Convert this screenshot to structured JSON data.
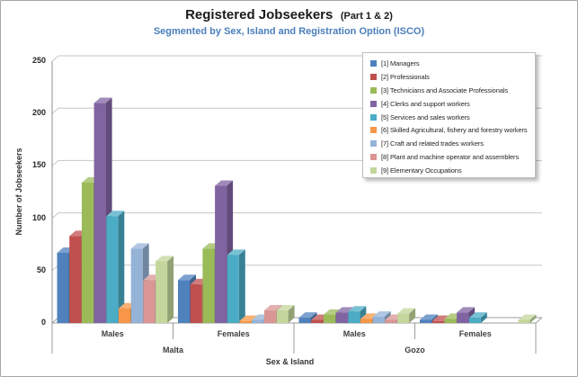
{
  "window": {
    "background": "#FFFFFF",
    "border_color": "#A6A6A6"
  },
  "chart_data": {
    "type": "bar",
    "style": "3d-column",
    "title": "Registered Jobseekers",
    "title_suffix": "(Part 1 & 2)",
    "subtitle": "Segmented by Sex, Island and Registration Option (ISCO)",
    "subtitle_color": "#4A7EBB",
    "ylabel": "Number of Jobseekers",
    "xlabel": "Sex & Island",
    "ylim": [
      0,
      250
    ],
    "yticks": [
      0,
      50,
      100,
      150,
      200,
      250
    ],
    "grid": true,
    "legend_position": "top-right",
    "islands": [
      "Malta",
      "Gozo"
    ],
    "categories": [
      {
        "island": "Malta",
        "sex": "Males"
      },
      {
        "island": "Malta",
        "sex": "Females"
      },
      {
        "island": "Gozo",
        "sex": "Males"
      },
      {
        "island": "Gozo",
        "sex": "Females"
      }
    ],
    "series": [
      {
        "name": "[1] Managers",
        "color": "#4F81BD",
        "values": [
          67,
          41,
          5,
          3
        ]
      },
      {
        "name": "[2] Professionals",
        "color": "#C0504D",
        "values": [
          83,
          37,
          3,
          2
        ]
      },
      {
        "name": "[3] Technicians and Associate Professionals",
        "color": "#9BBB59",
        "values": [
          134,
          71,
          8,
          4
        ]
      },
      {
        "name": "[4] Clerks and support workers",
        "color": "#8064A2",
        "values": [
          210,
          131,
          10,
          10
        ]
      },
      {
        "name": "[5] Services and sales workers",
        "color": "#4BACC6",
        "values": [
          102,
          65,
          11,
          5
        ]
      },
      {
        "name": "[6] Skilled Agricultural, fishery and forestry workers",
        "color": "#F79646",
        "values": [
          14,
          2,
          4,
          0
        ]
      },
      {
        "name": "[7] Craft and related trades workers",
        "color": "#95B3D7",
        "values": [
          71,
          3,
          6,
          0
        ]
      },
      {
        "name": "[8] Plant and machine operator and assemblers",
        "color": "#D99694",
        "values": [
          41,
          12,
          3,
          0
        ]
      },
      {
        "name": "[9] Elementary Occupations",
        "color": "#C3D69B",
        "values": [
          59,
          12,
          9,
          3
        ]
      }
    ]
  }
}
